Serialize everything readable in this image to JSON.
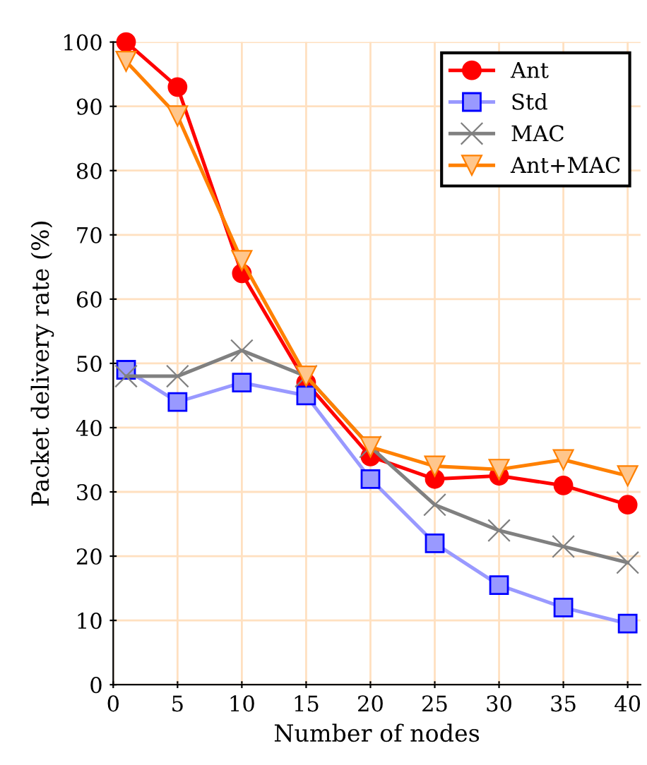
{
  "chart_data": {
    "type": "line",
    "xlabel": "Number of nodes",
    "ylabel": "Packet delivery rate (%)",
    "x": [
      1,
      5,
      10,
      15,
      20,
      25,
      30,
      35,
      40
    ],
    "xlim": [
      0,
      41
    ],
    "xticks": [
      0,
      5,
      10,
      15,
      20,
      25,
      30,
      35,
      40
    ],
    "ylim": [
      0,
      100
    ],
    "yticks": [
      0,
      10,
      20,
      30,
      40,
      50,
      60,
      70,
      80,
      90,
      100
    ],
    "grid": true,
    "legend": "top right",
    "series": [
      {
        "name": "Ant",
        "color": "#ff0000",
        "marker": "circle",
        "values": [
          100,
          93,
          64,
          47,
          35.5,
          32,
          32.5,
          31,
          28
        ]
      },
      {
        "name": "Std",
        "color": "#9999ff",
        "marker": "square",
        "values": [
          49,
          44,
          47,
          45,
          32,
          22,
          15.5,
          12,
          9.5
        ]
      },
      {
        "name": "MAC",
        "color": "#808080",
        "marker": "cross",
        "values": [
          48,
          48,
          52,
          48,
          37,
          28,
          24,
          21.5,
          19
        ]
      },
      {
        "name": "Ant+MAC",
        "color": "#ff8000",
        "marker": "triangle",
        "values": [
          97,
          88.5,
          66,
          48,
          37,
          34,
          33.5,
          35,
          32.5
        ]
      }
    ]
  }
}
